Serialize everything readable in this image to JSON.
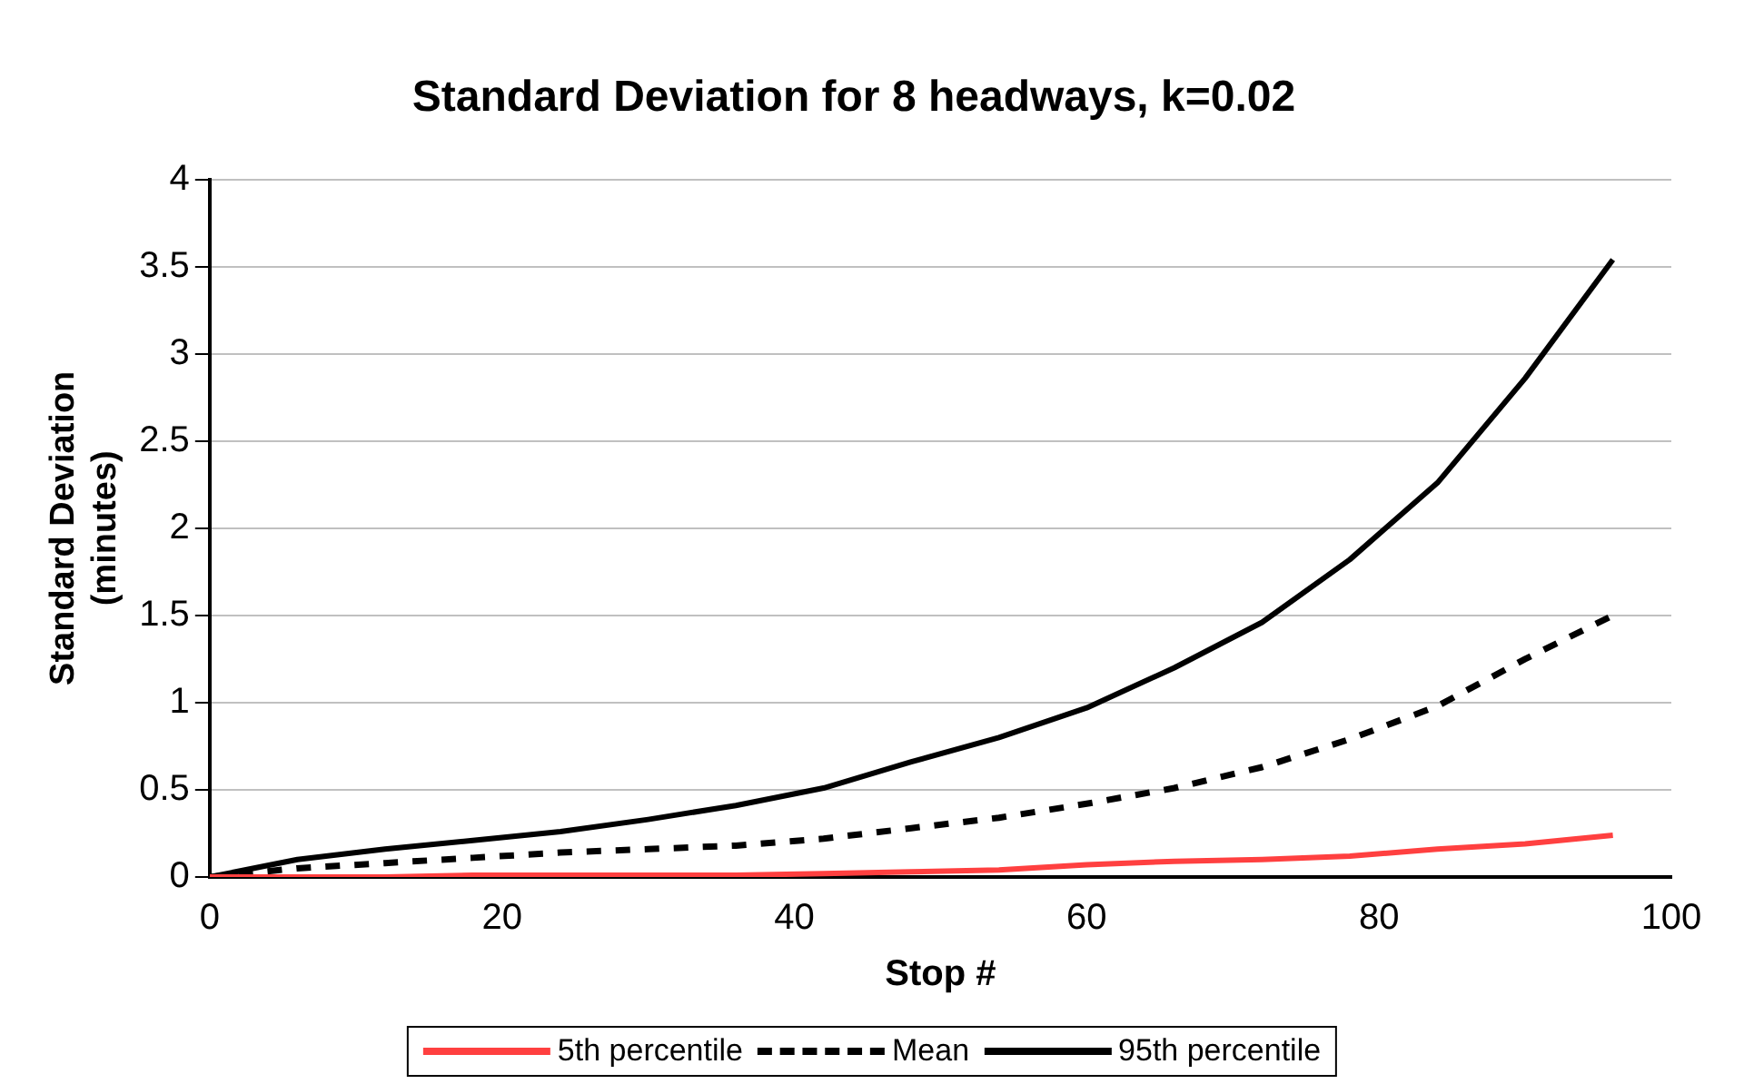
{
  "chart_data": {
    "type": "line",
    "title": "Standard Deviation for 8 headways, k=0.02",
    "xlabel": "Stop #",
    "ylabel": "Standard Deviation (minutes)",
    "x": [
      0,
      6,
      12,
      18,
      24,
      30,
      36,
      42,
      48,
      54,
      60,
      66,
      72,
      78,
      84,
      90,
      96
    ],
    "series": [
      {
        "name": "5th percentile",
        "color": "#ff4040",
        "line_style": "solid",
        "values": [
          0,
          0,
          0,
          0.01,
          0.01,
          0.01,
          0.01,
          0.02,
          0.03,
          0.04,
          0.07,
          0.09,
          0.1,
          0.12,
          0.16,
          0.19,
          0.24
        ]
      },
      {
        "name": "Mean",
        "color": "#000000",
        "line_style": "dashed",
        "values": [
          0,
          0.05,
          0.08,
          0.11,
          0.14,
          0.16,
          0.18,
          0.22,
          0.28,
          0.34,
          0.42,
          0.51,
          0.63,
          0.79,
          0.98,
          1.25,
          1.5
        ]
      },
      {
        "name": "95th percentile",
        "color": "#000000",
        "line_style": "solid",
        "values": [
          0,
          0.1,
          0.16,
          0.21,
          0.26,
          0.33,
          0.41,
          0.51,
          0.66,
          0.8,
          0.97,
          1.2,
          1.46,
          1.82,
          2.26,
          2.86,
          3.54
        ]
      }
    ],
    "xlim": [
      0,
      100
    ],
    "xticks": [
      0,
      20,
      40,
      60,
      80,
      100
    ],
    "ylim": [
      0,
      4
    ],
    "yticks": [
      0,
      0.5,
      1,
      1.5,
      2,
      2.5,
      3,
      3.5,
      4
    ],
    "grid": "y",
    "legend": "bottom",
    "marker": "none"
  }
}
